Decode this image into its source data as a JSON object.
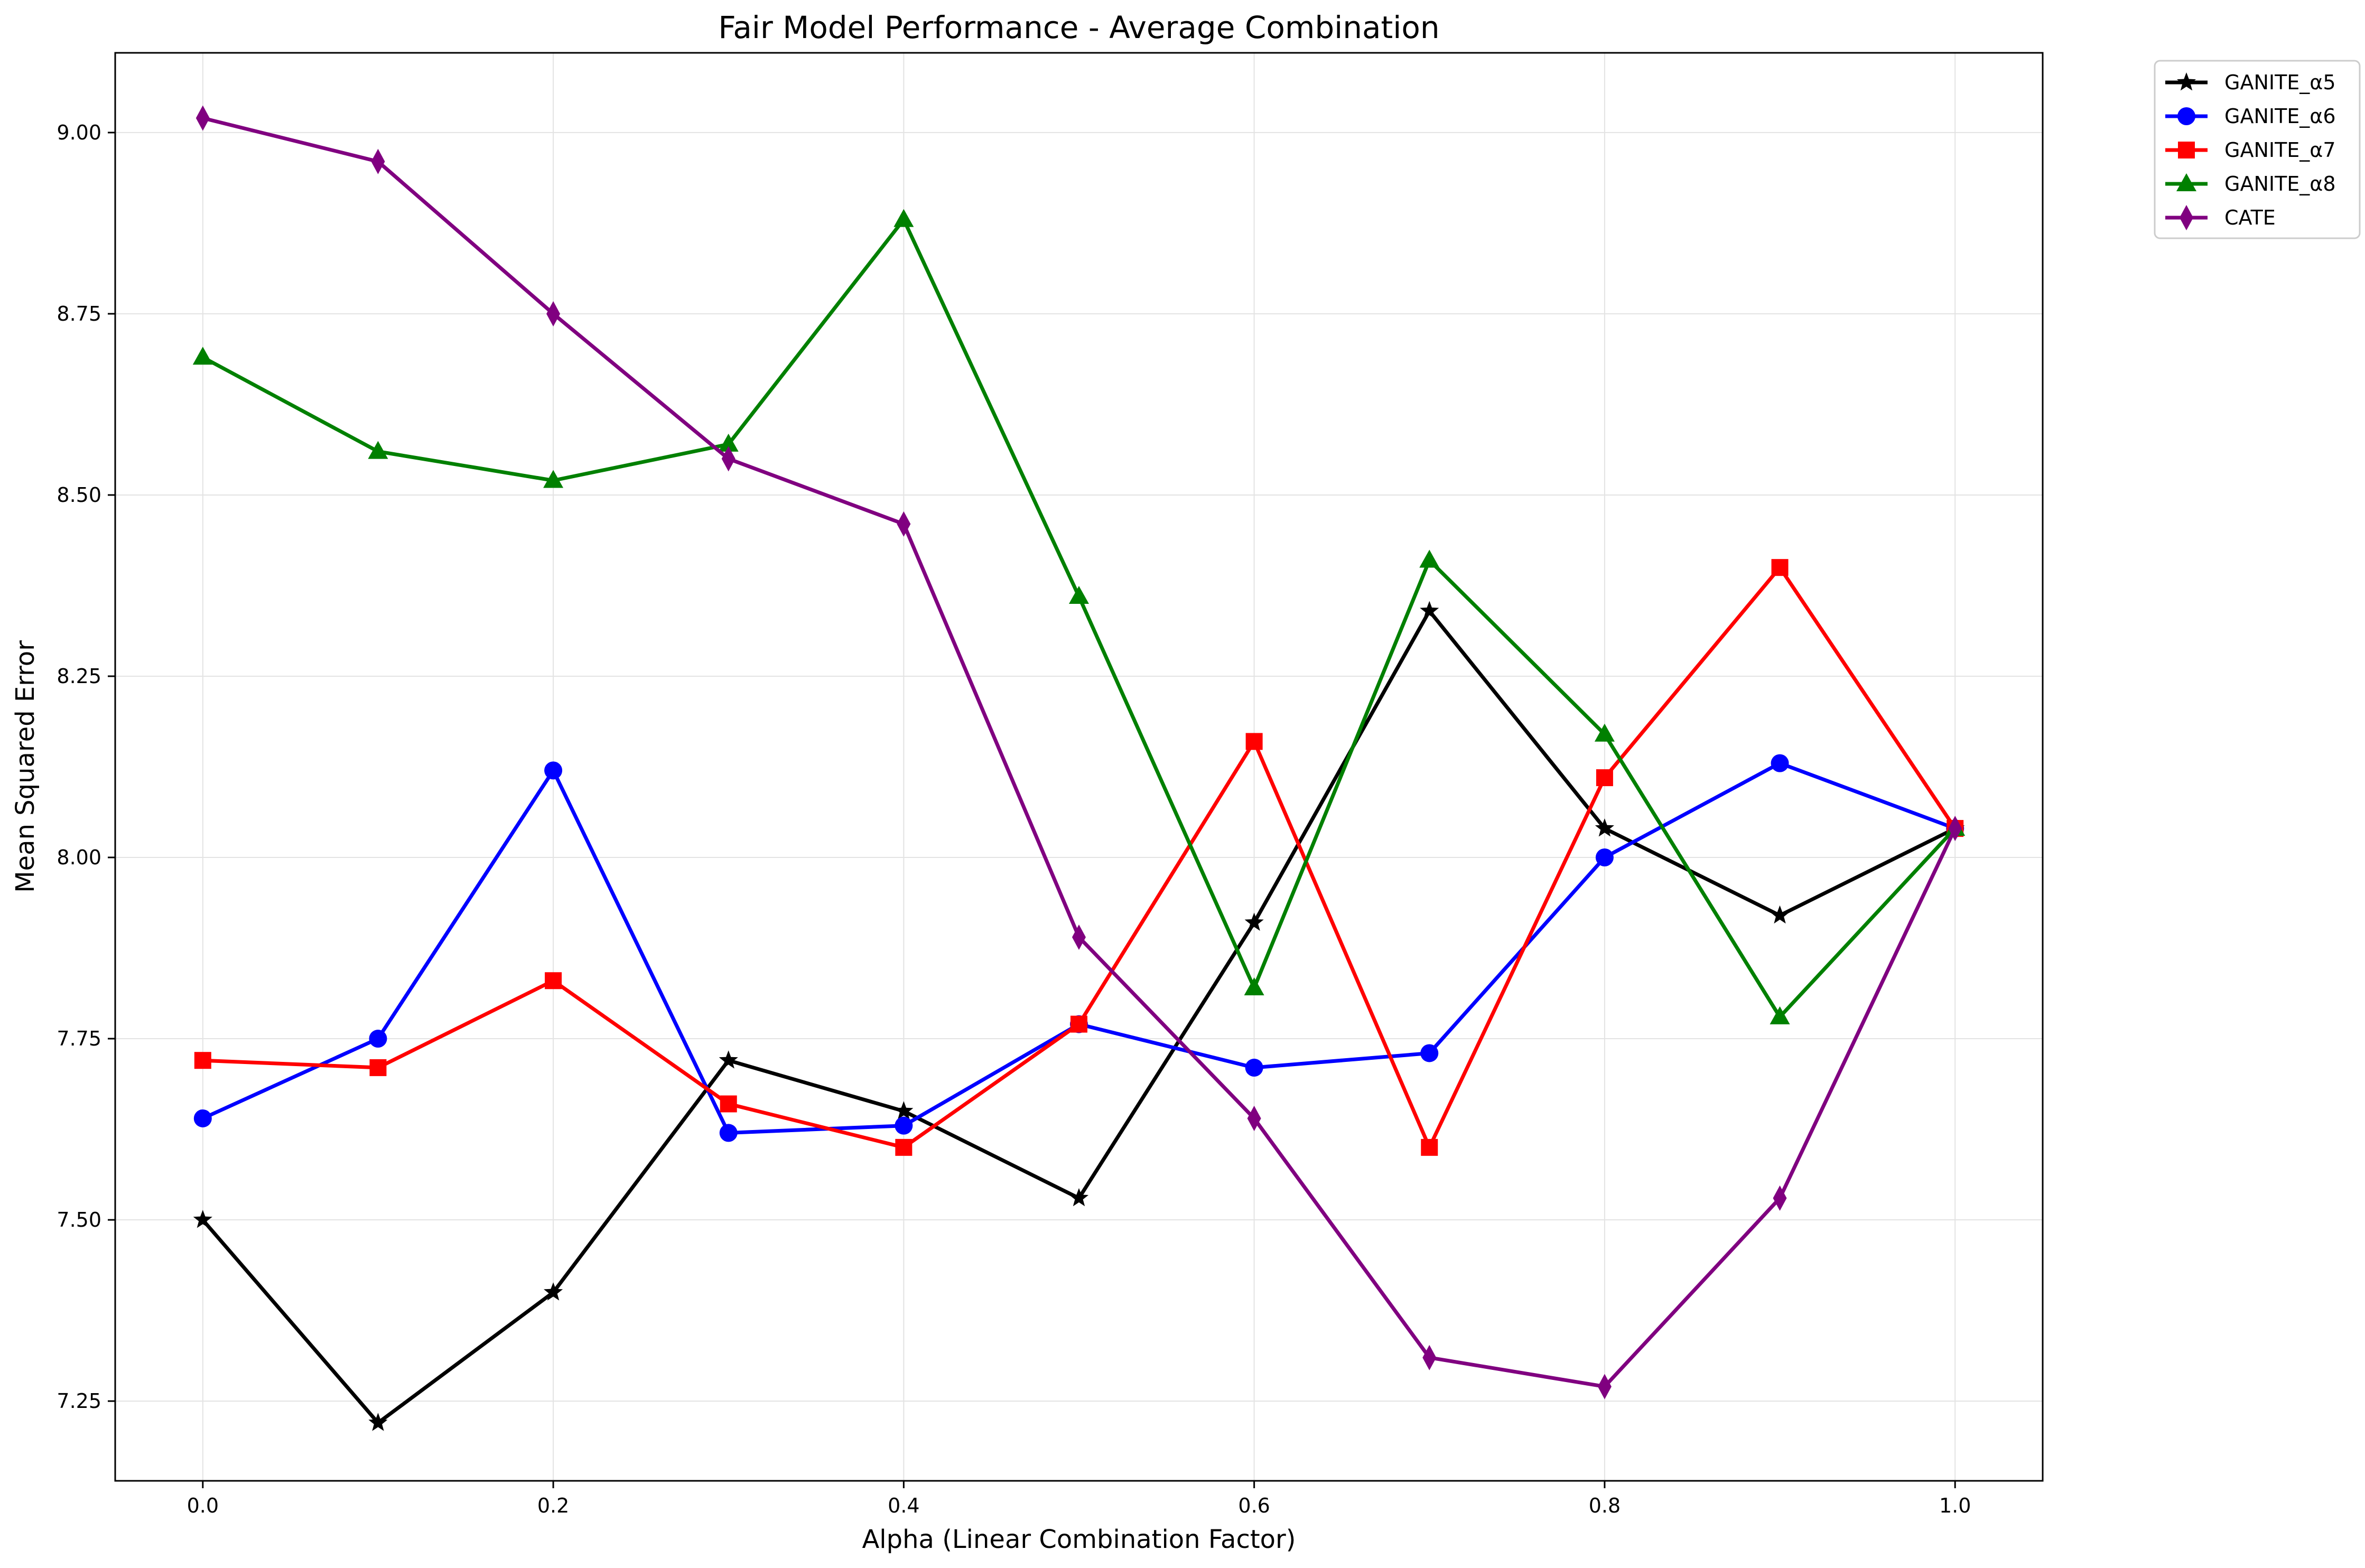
{
  "chart_data": {
    "type": "line",
    "title": "Fair Model Performance - Average Combination",
    "xlabel": "Alpha (Linear Combination Factor)",
    "ylabel": "Mean Squared Error",
    "x": [
      0.0,
      0.1,
      0.2,
      0.3,
      0.4,
      0.5,
      0.6,
      0.7,
      0.8,
      0.9,
      1.0
    ],
    "xlim": [
      -0.05,
      1.05
    ],
    "ylim": [
      7.14,
      9.11
    ],
    "xticks": [
      0.0,
      0.2,
      0.4,
      0.6,
      0.8,
      1.0
    ],
    "xtick_labels": [
      "0.0",
      "0.2",
      "0.4",
      "0.6",
      "0.8",
      "1.0"
    ],
    "yticks": [
      7.25,
      7.5,
      7.75,
      8.0,
      8.25,
      8.5,
      8.75,
      9.0
    ],
    "ytick_labels": [
      "7.25",
      "7.50",
      "7.75",
      "8.00",
      "8.25",
      "8.50",
      "8.75",
      "9.00"
    ],
    "grid": true,
    "legend_position": "outside top-right",
    "series": [
      {
        "name": "GANITE_α5",
        "color": "#000000",
        "marker": "star",
        "values": [
          7.5,
          7.22,
          7.4,
          7.72,
          7.65,
          7.53,
          7.91,
          8.34,
          8.04,
          7.92,
          8.04
        ]
      },
      {
        "name": "GANITE_α6",
        "color": "#0000ff",
        "marker": "circle",
        "values": [
          7.64,
          7.75,
          8.12,
          7.62,
          7.63,
          7.77,
          7.71,
          7.73,
          8.0,
          8.13,
          8.04
        ]
      },
      {
        "name": "GANITE_α7",
        "color": "#ff0000",
        "marker": "square",
        "values": [
          7.72,
          7.71,
          7.83,
          7.66,
          7.6,
          7.77,
          8.16,
          7.6,
          8.11,
          8.4,
          8.04
        ]
      },
      {
        "name": "GANITE_α8",
        "color": "#008000",
        "marker": "triangle",
        "values": [
          8.69,
          8.56,
          8.52,
          8.57,
          8.88,
          8.36,
          7.82,
          8.41,
          8.17,
          7.78,
          8.04
        ]
      },
      {
        "name": "CATE",
        "color": "#800080",
        "marker": "diamond",
        "values": [
          9.02,
          8.96,
          8.75,
          8.55,
          8.46,
          7.89,
          7.64,
          7.31,
          7.27,
          7.53,
          8.04
        ]
      }
    ]
  }
}
